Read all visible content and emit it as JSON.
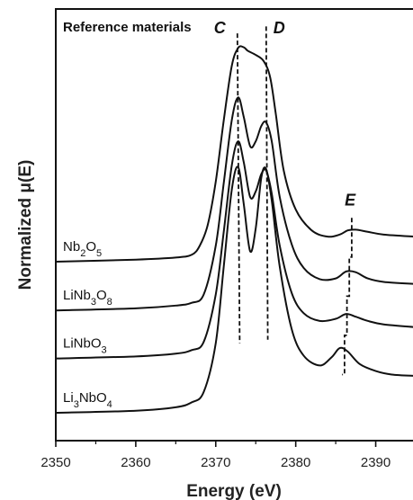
{
  "chart_data": {
    "type": "line",
    "title": "Reference materials",
    "xlabel": "Energy (eV)",
    "ylabel": "Normalized μ(E)",
    "xlim": [
      2350,
      2395
    ],
    "xticks": [
      2350,
      2360,
      2370,
      2380,
      2390
    ],
    "y_ticks_shown": false,
    "grid": false,
    "series": [
      {
        "name": "Nb2O5",
        "label_main": "Nb",
        "label_parts": [
          {
            "t": "Nb",
            "sub": false
          },
          {
            "t": "2",
            "sub": true
          },
          {
            "t": "O",
            "sub": false
          },
          {
            "t": "5",
            "sub": true
          }
        ],
        "x": [
          2350,
          2360,
          2365,
          2367,
          2368,
          2369,
          2370,
          2371,
          2372,
          2372.8,
          2373.5,
          2374,
          2375,
          2376,
          2376.8,
          2377.5,
          2378.5,
          2380,
          2382,
          2384,
          2385.5,
          2386.5,
          2387.5,
          2389,
          2391,
          2395
        ],
        "y": [
          2.57,
          2.6,
          2.63,
          2.67,
          2.8,
          3.1,
          3.72,
          4.6,
          5.38,
          5.64,
          5.65,
          5.6,
          5.54,
          5.45,
          5.22,
          4.7,
          3.88,
          3.32,
          3.02,
          2.93,
          2.96,
          3.02,
          3.03,
          3.0,
          2.96,
          2.93
        ]
      },
      {
        "name": "LiNb3O8",
        "label_parts": [
          {
            "t": "LiNb",
            "sub": false
          },
          {
            "t": "3",
            "sub": true
          },
          {
            "t": "O",
            "sub": false
          },
          {
            "t": "8",
            "sub": true
          }
        ],
        "x": [
          2350,
          2360,
          2365,
          2367,
          2368.5,
          2370,
          2371,
          2372,
          2372.8,
          2373.5,
          2374.3,
          2375,
          2375.7,
          2376.3,
          2377,
          2378,
          2379.5,
          2381,
          2383,
          2385,
          2386.3,
          2387.5,
          2389,
          2391,
          2395
        ],
        "y": [
          1.87,
          1.9,
          1.94,
          1.98,
          2.1,
          2.8,
          3.7,
          4.6,
          4.93,
          4.65,
          4.23,
          4.3,
          4.52,
          4.57,
          4.3,
          3.5,
          2.82,
          2.48,
          2.32,
          2.33,
          2.43,
          2.42,
          2.33,
          2.28,
          2.25
        ]
      },
      {
        "name": "LiNbO3",
        "label_parts": [
          {
            "t": "LiNbO",
            "sub": false
          },
          {
            "t": "3",
            "sub": true
          }
        ],
        "x": [
          2350,
          2360,
          2365,
          2367,
          2368.5,
          2370,
          2371,
          2372,
          2372.8,
          2373.5,
          2374.3,
          2375,
          2375.7,
          2376.3,
          2377,
          2378,
          2379.5,
          2381,
          2383,
          2385,
          2386.3,
          2387.5,
          2389,
          2391,
          2395
        ],
        "y": [
          1.18,
          1.21,
          1.25,
          1.3,
          1.42,
          2.1,
          3.0,
          3.95,
          4.3,
          4.0,
          3.5,
          3.58,
          3.83,
          3.88,
          3.55,
          2.8,
          2.12,
          1.83,
          1.72,
          1.75,
          1.82,
          1.78,
          1.72,
          1.67,
          1.63
        ]
      },
      {
        "name": "Li3NbO4",
        "label_parts": [
          {
            "t": "Li",
            "sub": false
          },
          {
            "t": "3",
            "sub": true
          },
          {
            "t": "NbO",
            "sub": false
          },
          {
            "t": "4",
            "sub": true
          }
        ],
        "x": [
          2350,
          2360,
          2365,
          2367,
          2368.5,
          2370,
          2371,
          2372,
          2372.8,
          2373.5,
          2374.3,
          2375,
          2375.7,
          2376.3,
          2377,
          2378,
          2379.5,
          2381,
          2383,
          2384.5,
          2385.5,
          2386.5,
          2388,
          2390,
          2392,
          2395
        ],
        "y": [
          0.4,
          0.43,
          0.48,
          0.55,
          0.7,
          1.4,
          2.5,
          3.6,
          3.93,
          3.4,
          2.72,
          3.05,
          3.78,
          3.9,
          3.45,
          2.5,
          1.6,
          1.22,
          1.08,
          1.2,
          1.33,
          1.28,
          1.1,
          1.0,
          0.95,
          0.93
        ]
      }
    ],
    "annotations": [
      {
        "text": "C",
        "x": 2372.7,
        "y": 5.75,
        "line_from": [
          2372.7,
          5.85
        ],
        "line_to": [
          2373.0,
          1.4
        ],
        "type": "dashed"
      },
      {
        "text": "D",
        "x": 2376.3,
        "y": 5.75,
        "line_from": [
          2376.3,
          5.95
        ],
        "line_to": [
          2376.5,
          1.45
        ],
        "type": "dashed"
      },
      {
        "text": "E",
        "x": 2386.8,
        "y": 3.2,
        "line_from": [
          2387.0,
          3.2
        ],
        "line_to": [
          2385.8,
          0.95
        ],
        "type": "dashed-step"
      }
    ]
  }
}
